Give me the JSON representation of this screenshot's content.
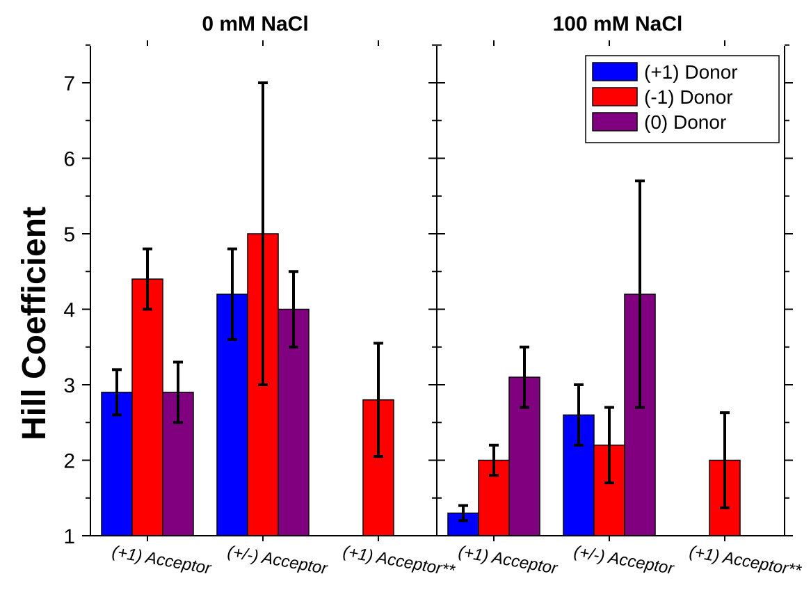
{
  "chart_data": {
    "type": "bar",
    "ylabel": "Hill Coefficient",
    "ylim": [
      1,
      7.5
    ],
    "yticks": [
      1,
      2,
      3,
      4,
      5,
      6,
      7
    ],
    "legend_placement": "top-right",
    "series": [
      {
        "name": "(+1) Donor",
        "color": "#0000ff"
      },
      {
        "name": "(-1) Donor",
        "color": "#ff0000"
      },
      {
        "name": "(0) Donor",
        "color": "#800080"
      }
    ],
    "panels": [
      {
        "title": "0 mM NaCl",
        "categories": [
          "(+1) Acceptor",
          "(+/-) Acceptor",
          "(+1) Acceptor**"
        ],
        "values": [
          [
            2.9,
            4.4,
            2.9
          ],
          [
            4.2,
            5.0,
            4.0
          ],
          [
            null,
            2.8,
            null
          ]
        ],
        "errors": [
          [
            0.3,
            0.4,
            0.4
          ],
          [
            0.6,
            2.0,
            0.5
          ],
          [
            null,
            0.75,
            null
          ]
        ]
      },
      {
        "title": "100 mM NaCl",
        "categories": [
          "(+1) Acceptor",
          "(+/-) Acceptor",
          "(+1) Acceptor**"
        ],
        "values": [
          [
            1.3,
            2.0,
            3.1
          ],
          [
            2.6,
            2.2,
            4.2
          ],
          [
            null,
            2.0,
            null
          ]
        ],
        "errors": [
          [
            0.1,
            0.2,
            0.4
          ],
          [
            0.4,
            0.5,
            1.5
          ],
          [
            null,
            0.63,
            null
          ]
        ]
      }
    ]
  }
}
